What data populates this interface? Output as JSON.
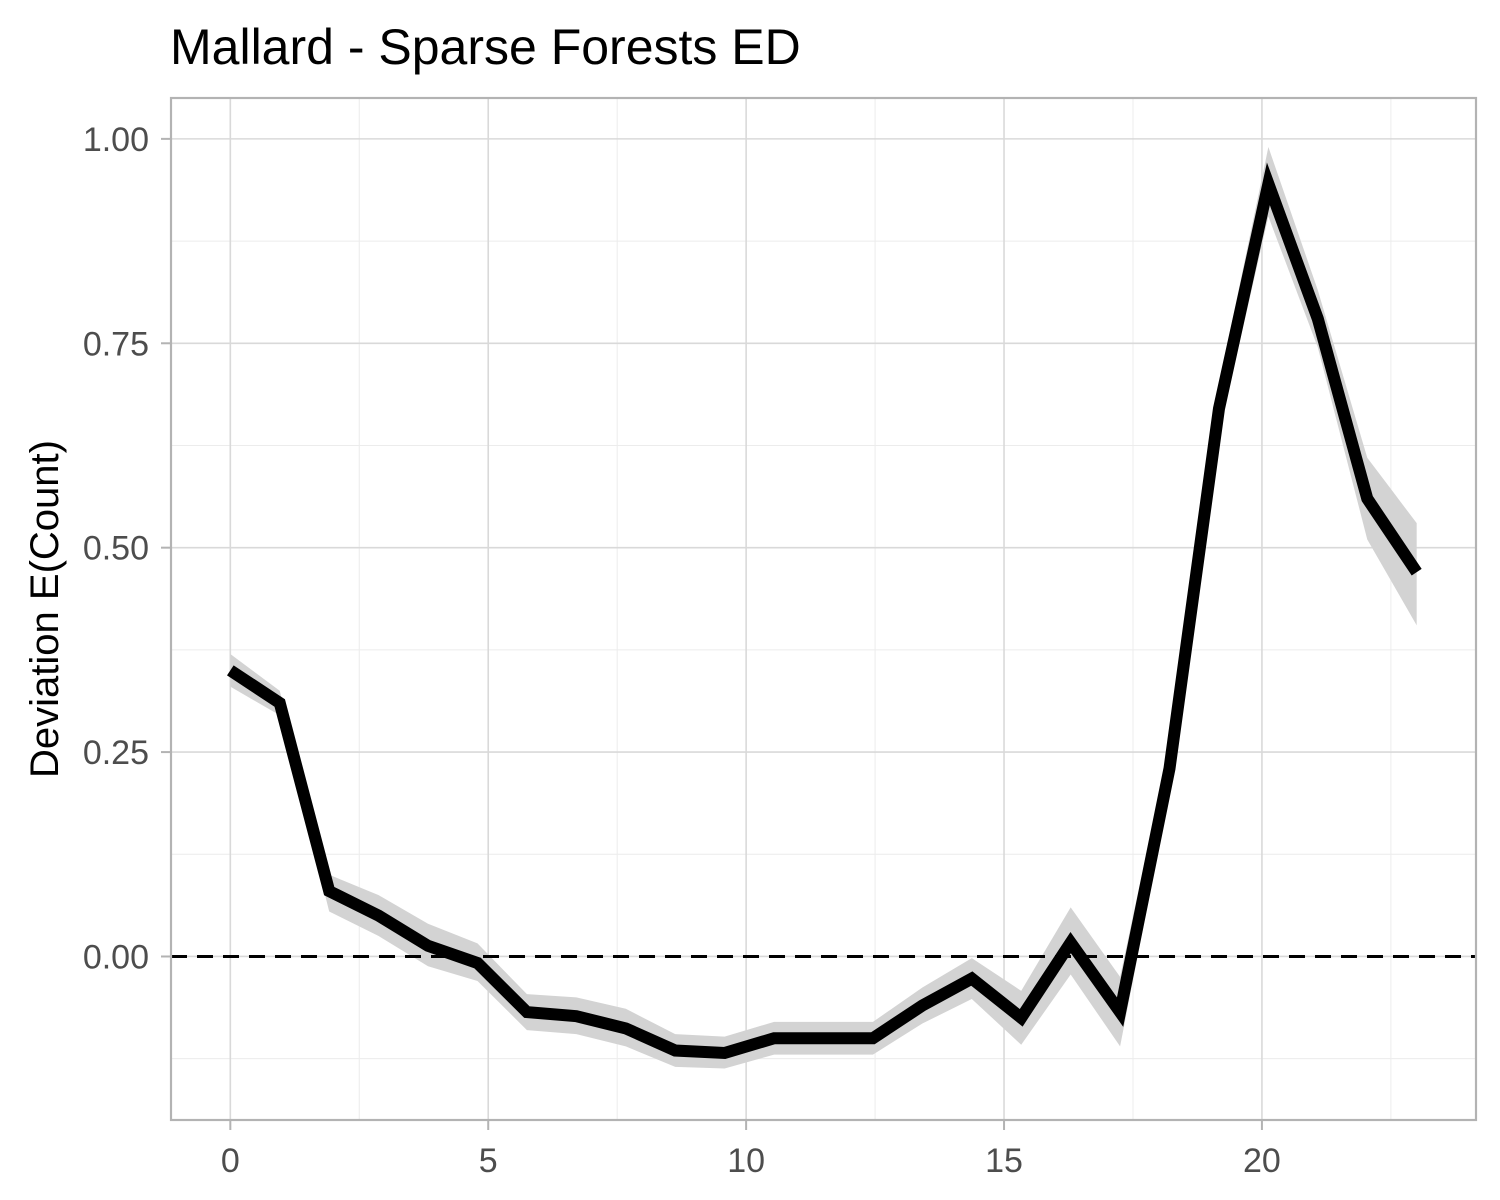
{
  "chart_data": {
    "type": "line",
    "title": "Mallard - Sparse Forests ED",
    "xlabel": "",
    "ylabel": "Deviation E(Count)",
    "xlim": [
      -1.15,
      24.15
    ],
    "ylim": [
      -0.2,
      1.05
    ],
    "x_ticks": [
      0,
      5,
      10,
      15,
      20
    ],
    "x_tick_labels": [
      "0",
      "5",
      "10",
      "15",
      "20"
    ],
    "y_ticks": [
      0.0,
      0.25,
      0.5,
      0.75,
      1.0
    ],
    "y_tick_labels": [
      "0.00",
      "0.25",
      "0.50",
      "0.75",
      "1.00"
    ],
    "grid": true,
    "reference_line": {
      "y": 0,
      "style": "dashed"
    },
    "series": [
      {
        "x": [
          0,
          0.958,
          1.917,
          2.875,
          3.833,
          4.792,
          5.75,
          6.708,
          7.667,
          8.625,
          9.583,
          10.542,
          11.5,
          12.458,
          13.417,
          14.375,
          15.333,
          16.292,
          17.25,
          18.208,
          19.167,
          20.125,
          21.083,
          22.042,
          23.0
        ],
        "values": [
          0.35,
          0.31,
          0.08,
          0.05,
          0.013,
          -0.008,
          -0.068,
          -0.073,
          -0.088,
          -0.115,
          -0.118,
          -0.1,
          -0.1,
          -0.1,
          -0.06,
          -0.027,
          -0.075,
          0.017,
          -0.068,
          0.23,
          0.67,
          0.945,
          0.78,
          0.56,
          0.47
        ],
        "lower": [
          0.33,
          0.295,
          0.055,
          0.025,
          -0.012,
          -0.03,
          -0.09,
          -0.095,
          -0.11,
          -0.135,
          -0.137,
          -0.12,
          -0.12,
          -0.12,
          -0.082,
          -0.052,
          -0.108,
          -0.022,
          -0.11,
          0.2,
          0.64,
          0.905,
          0.745,
          0.51,
          0.405
        ],
        "upper": [
          0.37,
          0.325,
          0.1,
          0.075,
          0.04,
          0.016,
          -0.046,
          -0.05,
          -0.064,
          -0.095,
          -0.098,
          -0.08,
          -0.08,
          -0.08,
          -0.038,
          -0.002,
          -0.042,
          0.06,
          -0.025,
          0.26,
          0.7,
          0.99,
          0.815,
          0.61,
          0.53
        ],
        "color": "#000000",
        "band_color": "#d3d3d3"
      }
    ]
  }
}
